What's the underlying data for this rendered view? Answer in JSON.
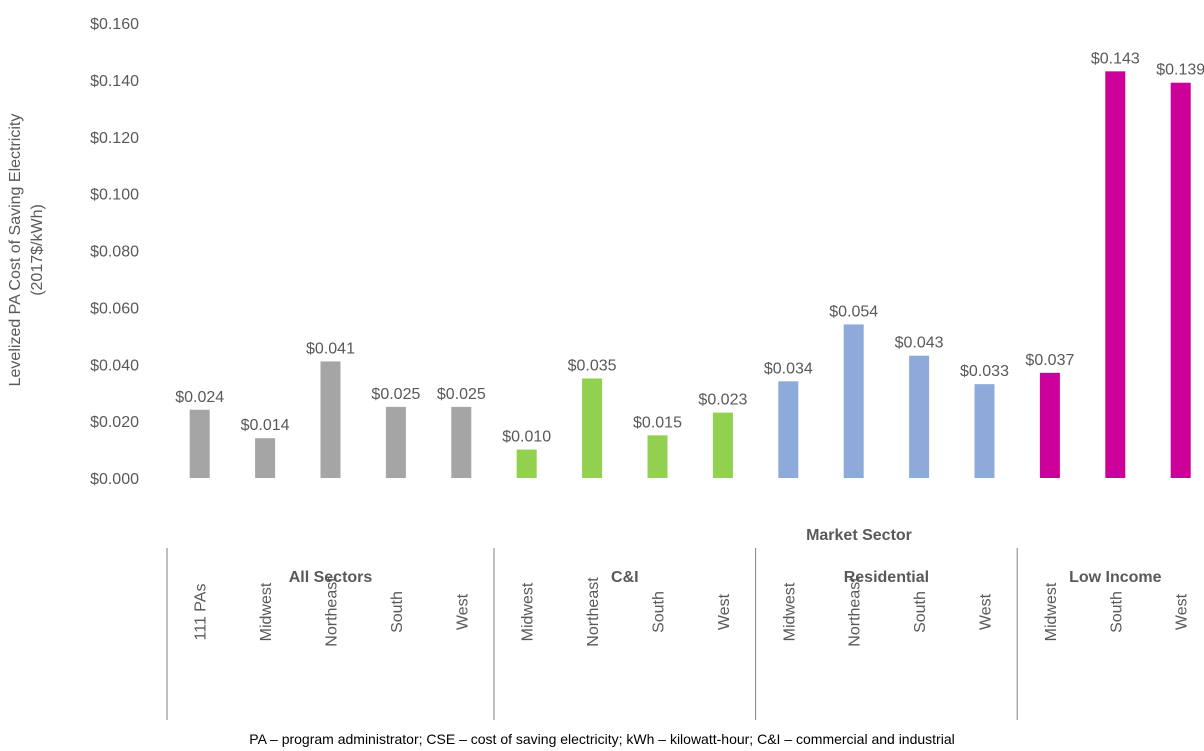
{
  "chart_data": {
    "type": "bar",
    "ylabel_lines": [
      "Levelized PA Cost of Saving Electricity",
      "(2017$/kWh)"
    ],
    "xlabel": "Market Sector",
    "ylim": [
      0,
      0.16
    ],
    "ytick_values": [
      0,
      0.02,
      0.04,
      0.06,
      0.08,
      0.1,
      0.12,
      0.14,
      0.16
    ],
    "ytick_labels": [
      "$0.000",
      "$0.020",
      "$0.040",
      "$0.060",
      "$0.080",
      "$0.100",
      "$0.120",
      "$0.140",
      "$0.160"
    ],
    "grid": false,
    "groups": [
      {
        "name": "All Sectors",
        "color": "#a5a5a5",
        "categories": [
          "111 PAs",
          "Midwest",
          "Northeast",
          "South",
          "West"
        ],
        "values": [
          0.024,
          0.014,
          0.041,
          0.025,
          0.025
        ],
        "labels": [
          "$0.024",
          "$0.014",
          "$0.041",
          "$0.025",
          "$0.025"
        ]
      },
      {
        "name": "C&I",
        "color": "#92d050",
        "categories": [
          "Midwest",
          "Northeast",
          "South",
          "West"
        ],
        "values": [
          0.01,
          0.035,
          0.015,
          0.023
        ],
        "labels": [
          "$0.010",
          "$0.035",
          "$0.015",
          "$0.023"
        ]
      },
      {
        "name": "Residential",
        "color": "#8eaadb",
        "categories": [
          "Midwest",
          "Northeast",
          "South",
          "West"
        ],
        "values": [
          0.034,
          0.054,
          0.043,
          0.033
        ],
        "labels": [
          "$0.034",
          "$0.054",
          "$0.043",
          "$0.033"
        ]
      },
      {
        "name": "Low Income",
        "color": "#cc0099",
        "categories": [
          "Midwest",
          "South",
          "West"
        ],
        "values": [
          0.037,
          0.143,
          0.139
        ],
        "labels": [
          "$0.037",
          "$0.143",
          "$0.139"
        ]
      }
    ]
  },
  "footnote": "PA – program administrator; CSE – cost of saving electricity; kWh – kilowatt-hour; C&I – commercial and industrial"
}
